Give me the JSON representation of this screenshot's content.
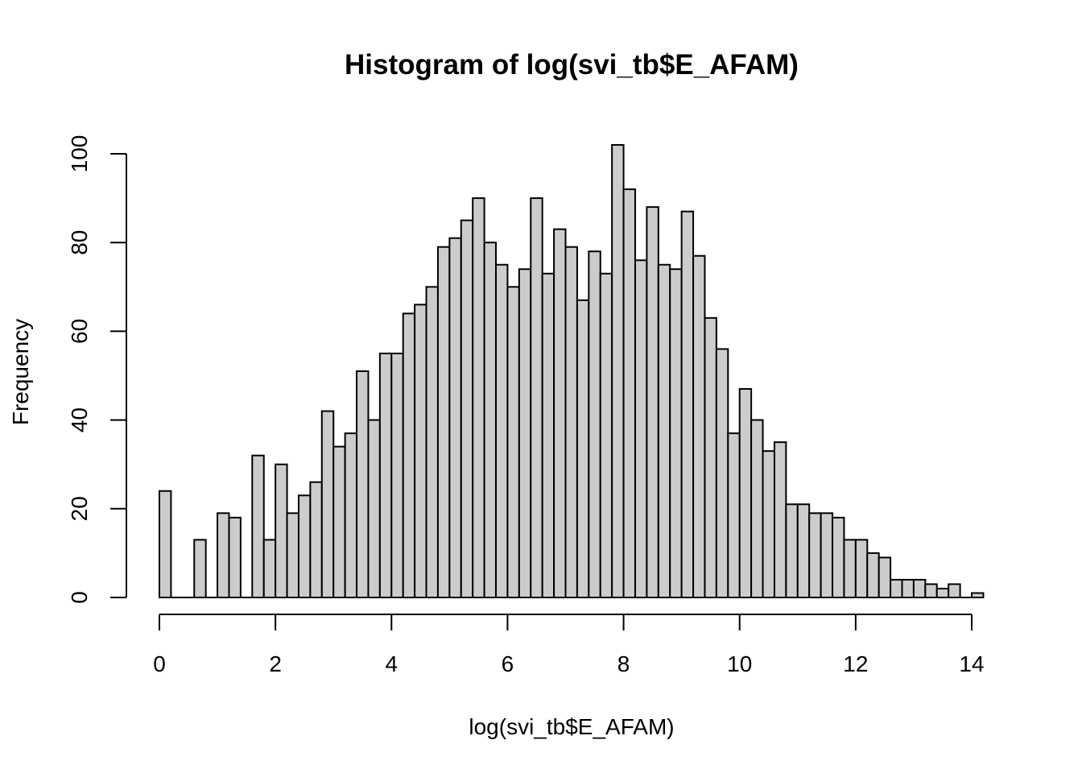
{
  "chart_data": {
    "type": "bar",
    "title": "Histogram of log(svi_tb$E_AFAM)",
    "xlabel": "log(svi_tb$E_AFAM)",
    "ylabel": "Frequency",
    "bin_width": 0.2,
    "x_start": 0,
    "xlim": [
      0,
      14
    ],
    "ylim": [
      0,
      100
    ],
    "x_ticks": [
      "0",
      "2",
      "4",
      "6",
      "8",
      "10",
      "12",
      "14"
    ],
    "y_ticks": [
      "0",
      "20",
      "40",
      "60",
      "80",
      "100"
    ],
    "values": [
      24,
      0,
      0,
      13,
      0,
      19,
      18,
      0,
      32,
      13,
      30,
      19,
      23,
      26,
      42,
      34,
      37,
      51,
      40,
      55,
      55,
      64,
      66,
      70,
      79,
      81,
      85,
      90,
      80,
      75,
      70,
      74,
      90,
      73,
      83,
      79,
      67,
      78,
      73,
      102,
      92,
      76,
      88,
      75,
      74,
      87,
      77,
      63,
      56,
      37,
      47,
      40,
      33,
      35,
      21,
      21,
      19,
      19,
      18,
      13,
      13,
      10,
      9,
      4,
      4,
      4,
      3,
      2,
      3,
      0,
      1
    ],
    "colors": {
      "bar_fill": "#cccccc",
      "bar_stroke": "#000000"
    },
    "grid": false,
    "legend": "none"
  }
}
